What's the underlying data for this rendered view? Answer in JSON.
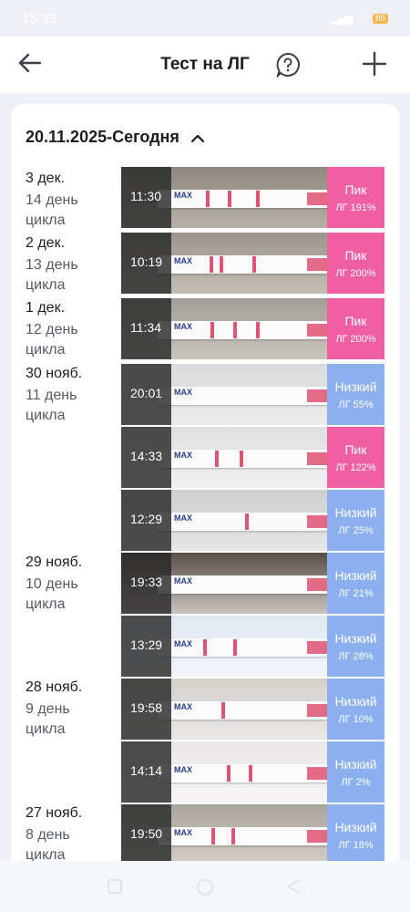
{
  "status_bar": {
    "time": "15:33",
    "battery": "86"
  },
  "header": {
    "title": "Тест на ЛГ"
  },
  "section": {
    "label": "20.11.2025-Сегодня"
  },
  "days": [
    {
      "date": "3 дек.",
      "cycle": "14 день цикла"
    },
    {
      "date": "2 дек.",
      "cycle": "13 день цикла"
    },
    {
      "date": "1 дек.",
      "cycle": "12 день цикла"
    },
    {
      "date": "30 нояб.",
      "cycle": "11 день цикла"
    },
    {
      "date": "29 нояб.",
      "cycle": "10 день цикла"
    },
    {
      "date": "28 нояб.",
      "cycle": "9 день цикла"
    },
    {
      "date": "27 нояб.",
      "cycle": "8 день цикла"
    }
  ],
  "tests": [
    {
      "time": "11:30",
      "level": "Пик",
      "lh": "ЛГ 191%",
      "color": "#ef5fa2"
    },
    {
      "time": "10:19",
      "level": "Пик",
      "lh": "ЛГ 200%",
      "color": "#ef5fa2"
    },
    {
      "time": "11:34",
      "level": "Пик",
      "lh": "ЛГ 200%",
      "color": "#ef5fa2"
    },
    {
      "time": "20:01",
      "level": "Низкий",
      "lh": "ЛГ 55%",
      "color": "#8cb0ef"
    },
    {
      "time": "14:33",
      "level": "Пик",
      "lh": "ЛГ 122%",
      "color": "#ef5fa2"
    },
    {
      "time": "12:29",
      "level": "Низкий",
      "lh": "ЛГ 25%",
      "color": "#8cb0ef"
    },
    {
      "time": "19:33",
      "level": "Низкий",
      "lh": "ЛГ 21%",
      "color": "#8cb0ef"
    },
    {
      "time": "13:29",
      "level": "Низкий",
      "lh": "ЛГ 28%",
      "color": "#8cb0ef"
    },
    {
      "time": "19:58",
      "level": "Низкий",
      "lh": "ЛГ 10%",
      "color": "#8cb0ef"
    },
    {
      "time": "14:14",
      "level": "Низкий",
      "lh": "ЛГ 2%",
      "color": "#8cb0ef"
    },
    {
      "time": "19:50",
      "level": "Низкий",
      "lh": "ЛГ 18%",
      "color": "#8cb0ef"
    }
  ],
  "strip_text": "MAX",
  "icons": {
    "back": "arrow-left-icon",
    "help": "question-bubble-icon",
    "add": "plus-icon",
    "collapse": "chevron-up-icon"
  }
}
